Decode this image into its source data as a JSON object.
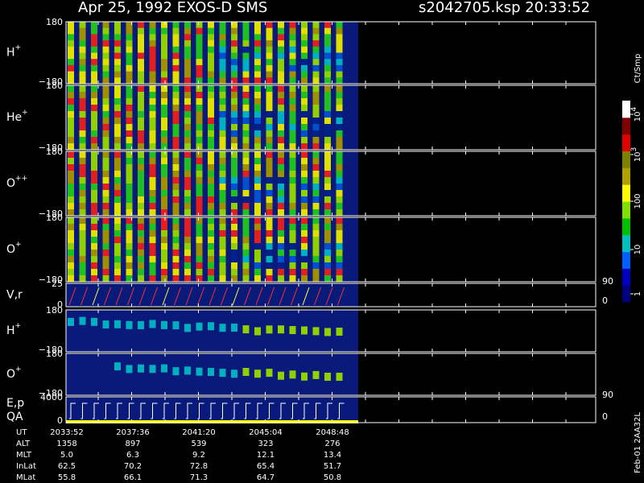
{
  "header": {
    "title": "Apr 25, 1992   EXOS-D SMS",
    "file": "s2042705.ksp  20:33:52"
  },
  "panels": [
    {
      "label": "H",
      "sup": "+",
      "ticks": [
        "180",
        "−180"
      ]
    },
    {
      "label": "He",
      "sup": "+",
      "ticks": [
        "180",
        "−180"
      ]
    },
    {
      "label": "O",
      "sup": "++",
      "ticks": [
        "180",
        "−180"
      ]
    },
    {
      "label": "O",
      "sup": "+",
      "ticks": [
        "180",
        "−180"
      ]
    },
    {
      "label": "V,r",
      "ticks": [
        "25",
        "0"
      ],
      "right_ticks": [
        "90",
        "0"
      ]
    },
    {
      "label": "H",
      "sup": "+",
      "ticks": [
        "180",
        "−180"
      ]
    },
    {
      "label": "O",
      "sup": "+",
      "ticks": [
        "180",
        "−180"
      ]
    },
    {
      "label": "E,p",
      "label2": "QA",
      "ticks": [
        "4000",
        "0"
      ],
      "right_ticks": [
        "90",
        "0"
      ]
    }
  ],
  "colorbar": {
    "unit": "Ct/Smp",
    "labels": [
      {
        "base": "10",
        "exp": "4"
      },
      {
        "base": "10",
        "exp": "3"
      },
      "100",
      "10",
      "1"
    ]
  },
  "footer": {
    "rows": [
      {
        "name": "UT",
        "values": [
          "2033:52",
          "2037:36",
          "2041:20",
          "2045:04",
          "2048:48"
        ]
      },
      {
        "name": "ALT",
        "values": [
          "1358",
          "897",
          "539",
          "323",
          "276"
        ]
      },
      {
        "name": "MLT",
        "values": [
          "5.0",
          "6.3",
          "9.2",
          "12.1",
          "13.4"
        ]
      },
      {
        "name": "InLat",
        "values": [
          "62.5",
          "70.2",
          "72.8",
          "65.4",
          "51.7"
        ]
      },
      {
        "name": "MLat",
        "values": [
          "55.8",
          "66.1",
          "71.3",
          "64.7",
          "50.8"
        ]
      }
    ]
  },
  "stamp": "Feb-01 2AA32L"
}
